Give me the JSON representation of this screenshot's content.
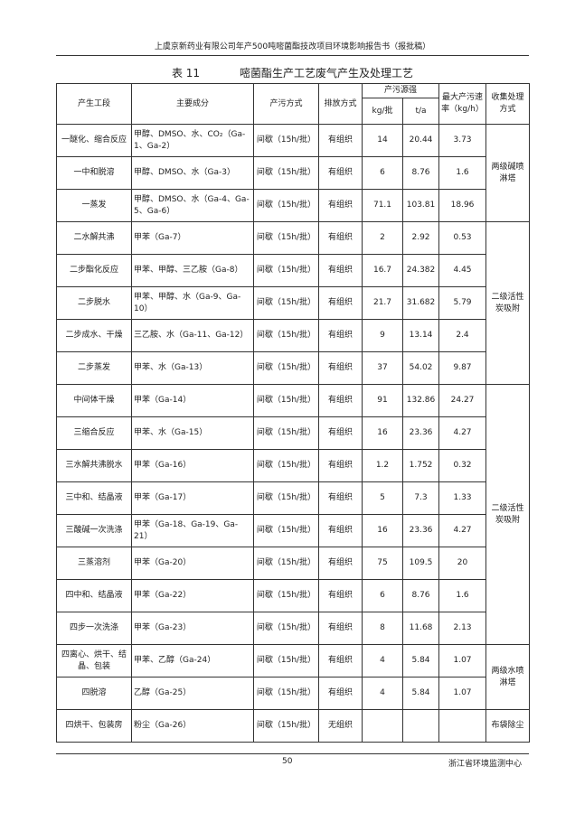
{
  "header": {
    "text": "上虞京新药业有限公司年产500吨嘧菌酯技改项目环境影响报告书（报批稿）"
  },
  "table": {
    "caption": {
      "number": "表 11",
      "title": "嘧菌酯生产工艺废气产生及处理工艺"
    },
    "headers": {
      "stage": "产生工段",
      "components": "主要成分",
      "mode": "产污方式",
      "emission": "排放方式",
      "source": "产污源强",
      "kg": "kg/批",
      "ta": "t/a",
      "rate": "最大产污速率（kg/h）",
      "treatment": "收集处理方式"
    },
    "rows": [
      {
        "stage": "一醚化、缩合反应",
        "components": "甲醇、DMSO、水、CO₂（Ga-1、Ga-2）",
        "mode": "间歇（15h/批）",
        "emission": "有组织",
        "kg": "14",
        "ta": "20.44",
        "rate": "3.73",
        "treatment": "两级碱喷淋塔"
      },
      {
        "stage": "一中和脱溶",
        "components": "甲醇、DMSO、水（Ga-3）",
        "mode": "间歇（15h/批）",
        "emission": "有组织",
        "kg": "6",
        "ta": "8.76",
        "rate": "1.6"
      },
      {
        "stage": "一蒸发",
        "components": "甲醇、DMSO、水（Ga-4、Ga-5、Ga-6）",
        "mode": "间歇（15h/批）",
        "emission": "有组织",
        "kg": "71.1",
        "ta": "103.81",
        "rate": "18.96"
      },
      {
        "stage": "二水解共沸",
        "components": "甲苯（Ga-7）",
        "mode": "间歇（15h/批）",
        "emission": "有组织",
        "kg": "2",
        "ta": "2.92",
        "rate": "0.53",
        "treatment": "二级活性炭吸附"
      },
      {
        "stage": "二步酯化反应",
        "components": "甲苯、甲醇、三乙胺（Ga-8）",
        "mode": "间歇（15h/批）",
        "emission": "有组织",
        "kg": "16.7",
        "ta": "24.382",
        "rate": "4.45"
      },
      {
        "stage": "二步脱水",
        "components": "甲苯、甲醇、水（Ga-9、Ga-10）",
        "mode": "间歇（15h/批）",
        "emission": "有组织",
        "kg": "21.7",
        "ta": "31.682",
        "rate": "5.79"
      },
      {
        "stage": "二步成水、干燥",
        "components": "三乙胺、水（Ga-11、Ga-12）",
        "mode": "间歇（15h/批）",
        "emission": "有组织",
        "kg": "9",
        "ta": "13.14",
        "rate": "2.4"
      },
      {
        "stage": "二步蒸发",
        "components": "甲苯、水（Ga-13）",
        "mode": "间歇（15h/批）",
        "emission": "有组织",
        "kg": "37",
        "ta": "54.02",
        "rate": "9.87"
      },
      {
        "stage": "中间体干燥",
        "components": "甲苯（Ga-14）",
        "mode": "间歇（15h/批）",
        "emission": "有组织",
        "kg": "91",
        "ta": "132.86",
        "rate": "24.27",
        "treatment": "二级活性炭吸附"
      },
      {
        "stage": "三缩合反应",
        "components": "甲苯、水（Ga-15）",
        "mode": "间歇（15h/批）",
        "emission": "有组织",
        "kg": "16",
        "ta": "23.36",
        "rate": "4.27"
      },
      {
        "stage": "三水解共沸脱水",
        "components": "甲苯（Ga-16）",
        "mode": "间歇（15h/批）",
        "emission": "有组织",
        "kg": "1.2",
        "ta": "1.752",
        "rate": "0.32"
      },
      {
        "stage": "三中和、结晶液",
        "components": "甲苯（Ga-17）",
        "mode": "间歇（15h/批）",
        "emission": "有组织",
        "kg": "5",
        "ta": "7.3",
        "rate": "1.33"
      },
      {
        "stage": "三酸碱一次洗涤",
        "components": "甲苯（Ga-18、Ga-19、Ga-21）",
        "mode": "间歇（15h/批）",
        "emission": "有组织",
        "kg": "16",
        "ta": "23.36",
        "rate": "4.27"
      },
      {
        "stage": "三蒸溶剂",
        "components": "甲苯（Ga-20）",
        "mode": "间歇（15h/批）",
        "emission": "有组织",
        "kg": "75",
        "ta": "109.5",
        "rate": "20"
      },
      {
        "stage": "四中和、结晶液",
        "components": "甲苯（Ga-22）",
        "mode": "间歇（15h/批）",
        "emission": "有组织",
        "kg": "6",
        "ta": "8.76",
        "rate": "1.6"
      },
      {
        "stage": "四步一次洗涤",
        "components": "甲苯（Ga-23）",
        "mode": "间歇（15h/批）",
        "emission": "有组织",
        "kg": "8",
        "ta": "11.68",
        "rate": "2.13"
      },
      {
        "stage": "四离心、烘干、结晶、包装",
        "components": "甲苯、乙醇（Ga-24）",
        "mode": "间歇（15h/批）",
        "emission": "有组织",
        "kg": "4",
        "ta": "5.84",
        "rate": "1.07",
        "treatment": "两级水喷淋塔"
      },
      {
        "stage": "四脱溶",
        "components": "乙醇（Ga-25）",
        "mode": "间歇（15h/批）",
        "emission": "有组织",
        "kg": "4",
        "ta": "5.84",
        "rate": "1.07"
      },
      {
        "stage": "四烘干、包装房",
        "components": "粉尘（Ga-26）",
        "mode": "间歇（15h/批）",
        "emission": "无组织",
        "treatment": "布袋除尘"
      }
    ]
  },
  "footer": {
    "page": "50",
    "org": "浙江省环境监测中心"
  }
}
